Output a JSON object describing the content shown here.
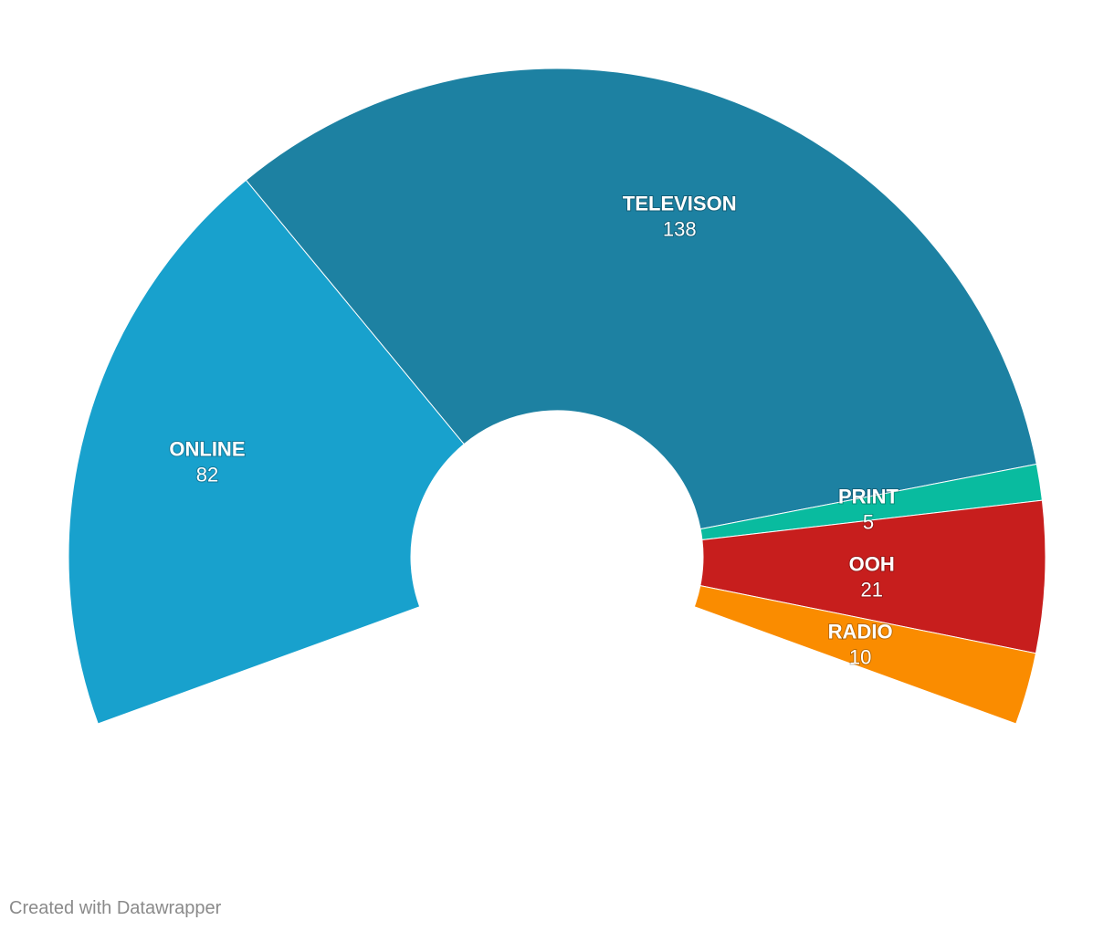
{
  "chart_data": {
    "type": "pie",
    "subtype": "half-donut",
    "title": "",
    "slices": [
      {
        "label": "ONLINE",
        "value": 82,
        "color": "#18a1cd"
      },
      {
        "label": "TELEVISON",
        "value": 138,
        "color": "#1d81a2"
      },
      {
        "label": "PRINT",
        "value": 5,
        "color": "#09bb9f"
      },
      {
        "label": "OOH",
        "value": 21,
        "color": "#c71e1d"
      },
      {
        "label": "RADIO",
        "value": 10,
        "color": "#fa8c00"
      }
    ]
  },
  "footer": {
    "credit": "Created with Datawrapper"
  }
}
